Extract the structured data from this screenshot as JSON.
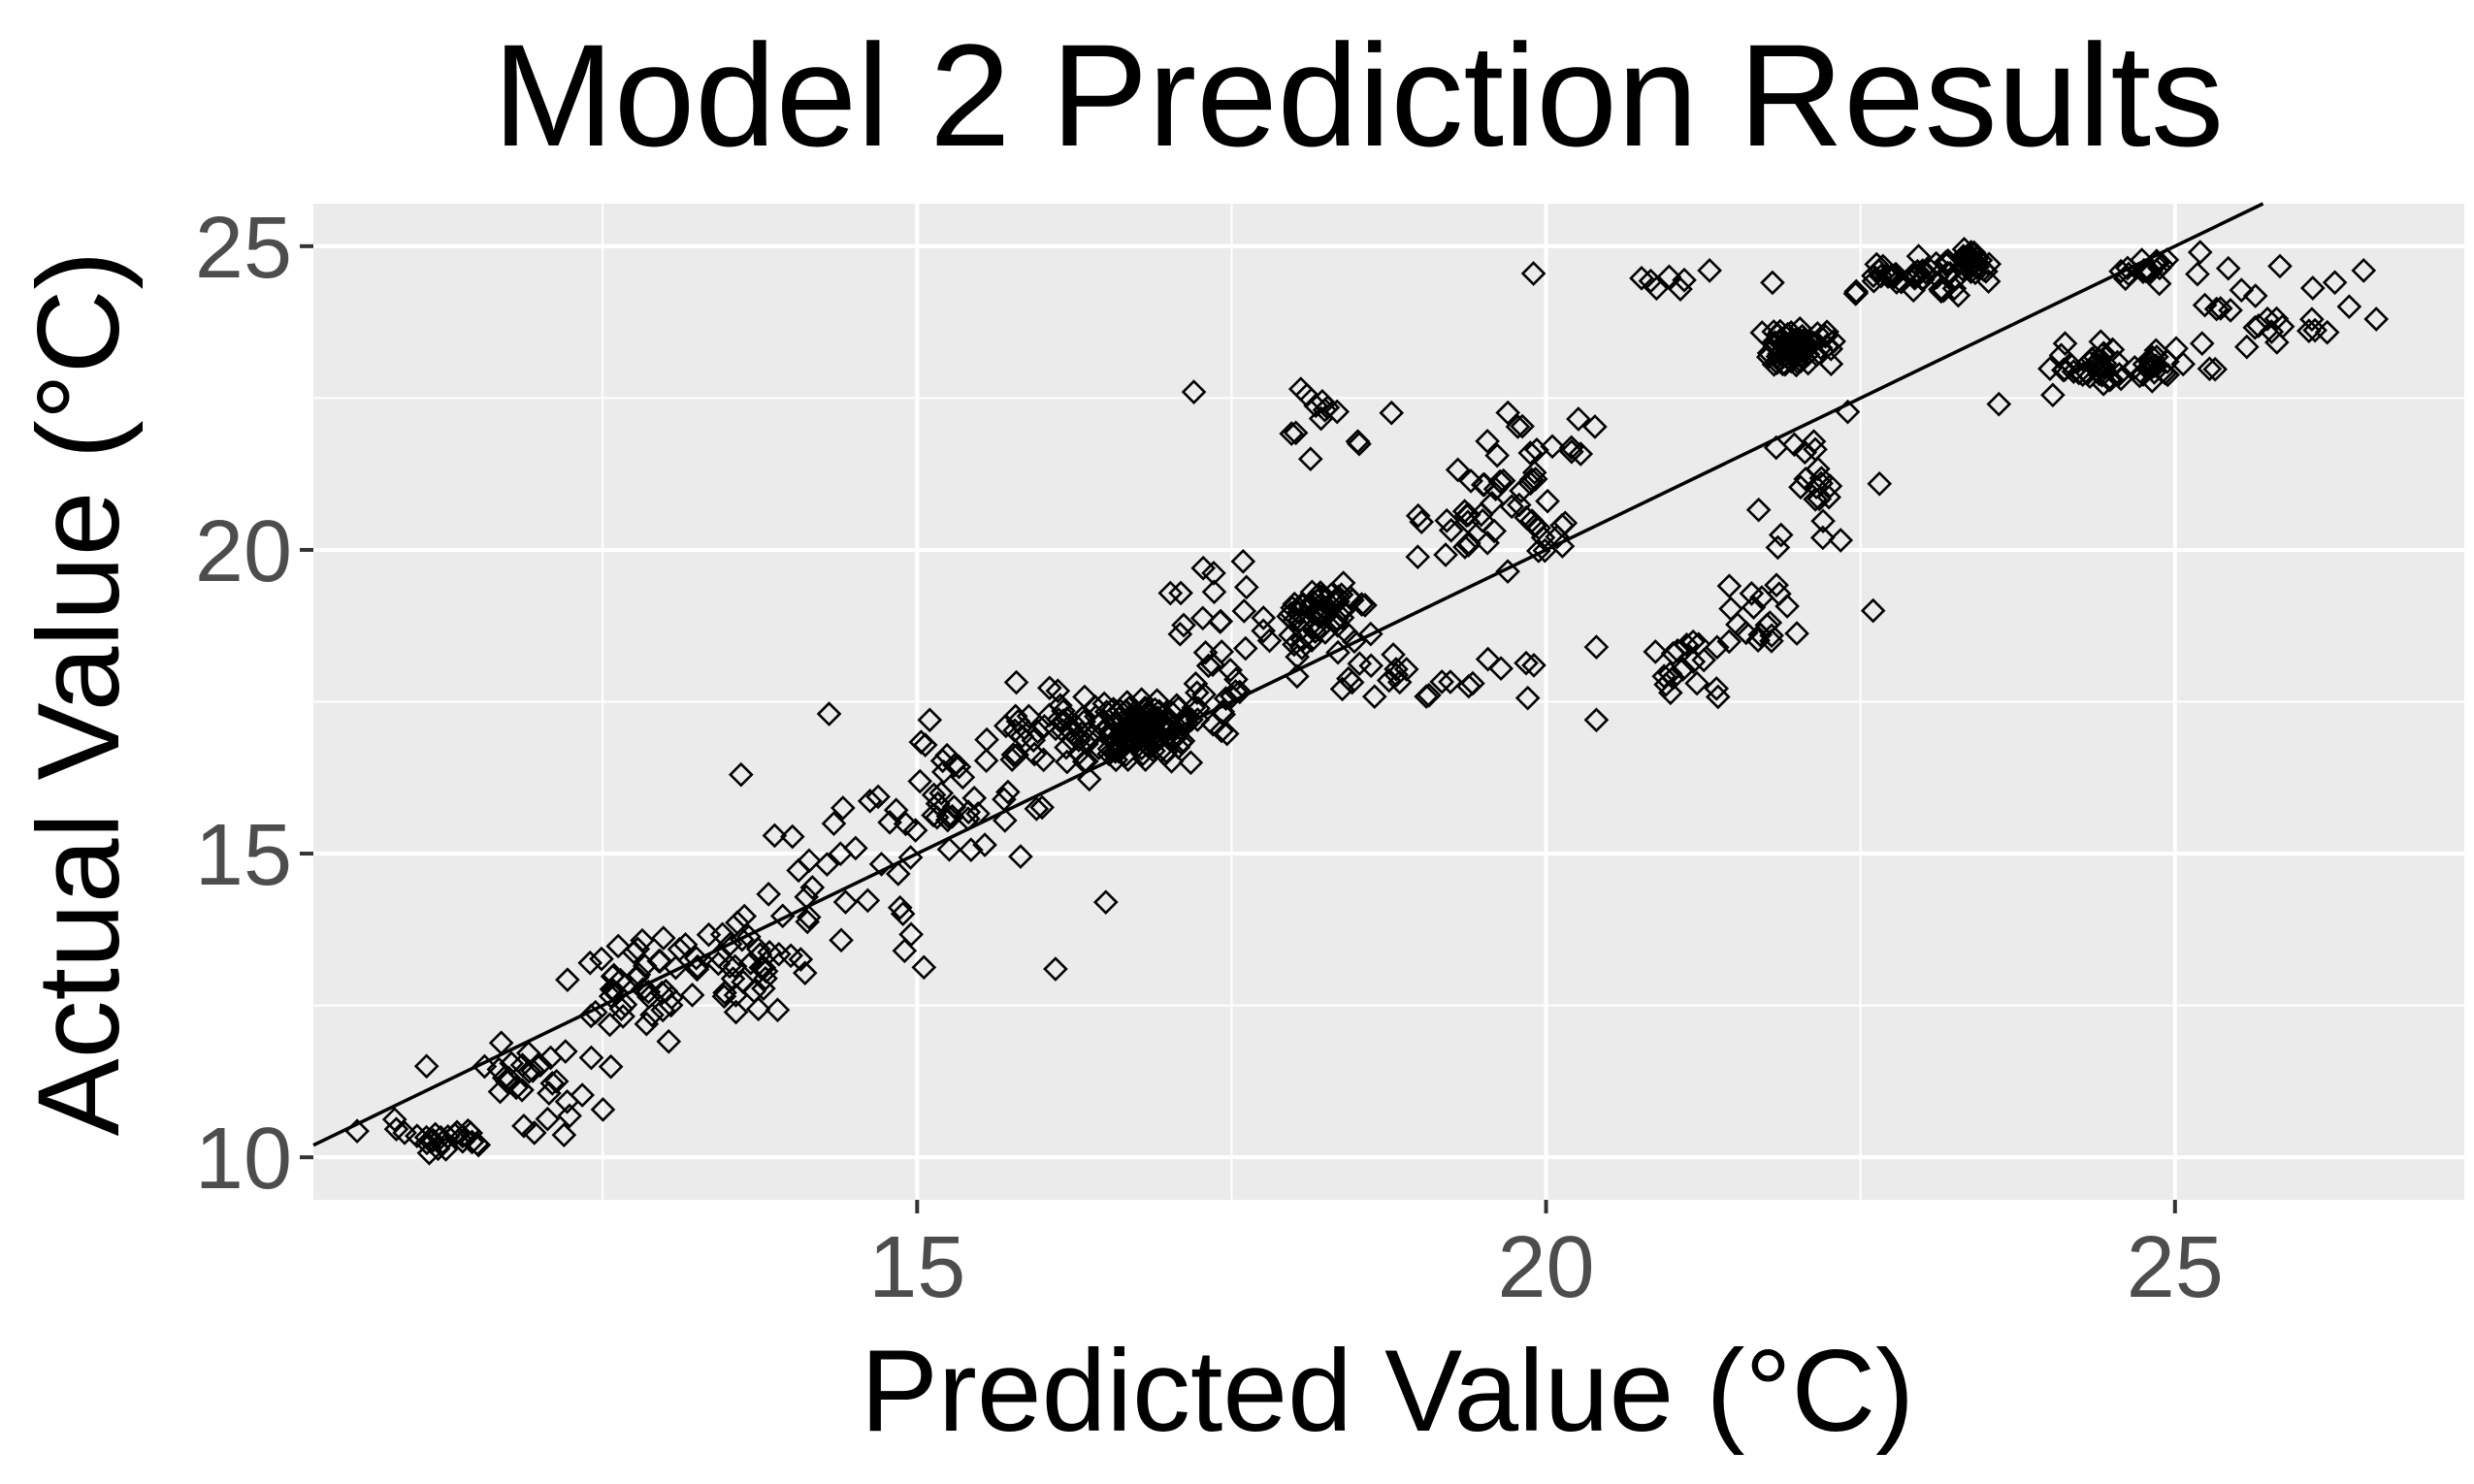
{
  "chart_data": {
    "type": "scatter",
    "title": "Model 2 Prediction Results",
    "xlabel": "Predicted Value (°C)",
    "ylabel": "Actual Value (°C)",
    "xlim": [
      10.2,
      27.3
    ],
    "ylim": [
      9.3,
      25.7
    ],
    "xticks": [
      15,
      20,
      25
    ],
    "xtick_labels": [
      "15",
      "20",
      "25"
    ],
    "yticks": [
      10,
      15,
      20,
      25
    ],
    "ytick_labels": [
      "10",
      "15",
      "20",
      "25"
    ],
    "grid": true,
    "marker": "open-diamond",
    "reference_line": {
      "slope": 1,
      "intercept": 0,
      "label": "y = x"
    },
    "colors": {
      "panel": "#ebebeb",
      "grid": "#ffffff",
      "marker": "#000000",
      "line": "#000000",
      "tick": "#4d4d4d"
    },
    "clusters": [
      {
        "x": 11.2,
        "y": 10.3,
        "sx": 0.35,
        "sy": 0.2,
        "n": 24
      },
      {
        "x": 12.0,
        "y": 11.2,
        "sx": 0.35,
        "sy": 0.55,
        "n": 30
      },
      {
        "x": 12.7,
        "y": 12.8,
        "sx": 0.35,
        "sy": 0.5,
        "n": 36
      },
      {
        "x": 13.6,
        "y": 13.2,
        "sx": 0.4,
        "sy": 0.65,
        "n": 40
      },
      {
        "x": 14.5,
        "y": 14.5,
        "sx": 0.5,
        "sy": 0.9,
        "n": 26
      },
      {
        "x": 15.4,
        "y": 15.8,
        "sx": 0.4,
        "sy": 0.75,
        "n": 40
      },
      {
        "x": 16.2,
        "y": 17.0,
        "sx": 0.4,
        "sy": 0.45,
        "n": 55
      },
      {
        "x": 16.8,
        "y": 17.0,
        "sx": 0.25,
        "sy": 0.35,
        "n": 110
      },
      {
        "x": 17.4,
        "y": 18.3,
        "sx": 0.35,
        "sy": 1.1,
        "n": 40
      },
      {
        "x": 18.2,
        "y": 18.9,
        "sx": 0.25,
        "sy": 0.4,
        "n": 55
      },
      {
        "x": 18.3,
        "y": 22.1,
        "sx": 0.3,
        "sy": 0.5,
        "n": 14
      },
      {
        "x": 18.8,
        "y": 18.0,
        "sx": 0.3,
        "sy": 0.35,
        "n": 15
      },
      {
        "x": 19.6,
        "y": 20.5,
        "sx": 0.35,
        "sy": 0.65,
        "n": 42
      },
      {
        "x": 20.1,
        "y": 21.7,
        "sx": 0.4,
        "sy": 0.6,
        "n": 16
      },
      {
        "x": 19.7,
        "y": 18.0,
        "sx": 0.35,
        "sy": 0.4,
        "n": 8
      },
      {
        "x": 21.0,
        "y": 24.4,
        "sx": 0.2,
        "sy": 0.12,
        "n": 6
      },
      {
        "x": 21.1,
        "y": 18.0,
        "sx": 0.25,
        "sy": 0.5,
        "n": 18
      },
      {
        "x": 21.7,
        "y": 18.9,
        "sx": 0.25,
        "sy": 0.5,
        "n": 18
      },
      {
        "x": 22.0,
        "y": 23.3,
        "sx": 0.2,
        "sy": 0.25,
        "n": 65
      },
      {
        "x": 22.1,
        "y": 21.2,
        "sx": 0.3,
        "sy": 0.9,
        "n": 22
      },
      {
        "x": 22.9,
        "y": 24.5,
        "sx": 0.35,
        "sy": 0.2,
        "n": 35
      },
      {
        "x": 23.3,
        "y": 24.7,
        "sx": 0.25,
        "sy": 0.15,
        "n": 30
      },
      {
        "x": 24.4,
        "y": 23.0,
        "sx": 0.3,
        "sy": 0.25,
        "n": 35
      },
      {
        "x": 24.9,
        "y": 23.0,
        "sx": 0.3,
        "sy": 0.25,
        "n": 22
      },
      {
        "x": 24.8,
        "y": 24.6,
        "sx": 0.15,
        "sy": 0.15,
        "n": 16
      },
      {
        "x": 25.8,
        "y": 24.0,
        "sx": 0.4,
        "sy": 0.45,
        "n": 25
      }
    ],
    "points": [
      [
        19.9,
        24.55
      ],
      [
        17.2,
        22.6
      ],
      [
        23.6,
        22.4
      ],
      [
        16.1,
        13.1
      ],
      [
        16.5,
        14.2
      ],
      [
        14.3,
        17.3
      ],
      [
        15.1,
        17.2
      ],
      [
        20.4,
        17.2
      ],
      [
        20.4,
        18.4
      ],
      [
        26.6,
        23.8
      ],
      [
        26.5,
        24.6
      ],
      [
        25.2,
        24.9
      ],
      [
        13.6,
        16.3
      ],
      [
        14.9,
        13.4
      ],
      [
        12.4,
        13.2
      ],
      [
        11.1,
        11.5
      ],
      [
        21.3,
        24.6
      ],
      [
        21.8,
        24.4
      ],
      [
        22.2,
        20.2
      ],
      [
        22.6,
        19.0
      ]
    ]
  }
}
